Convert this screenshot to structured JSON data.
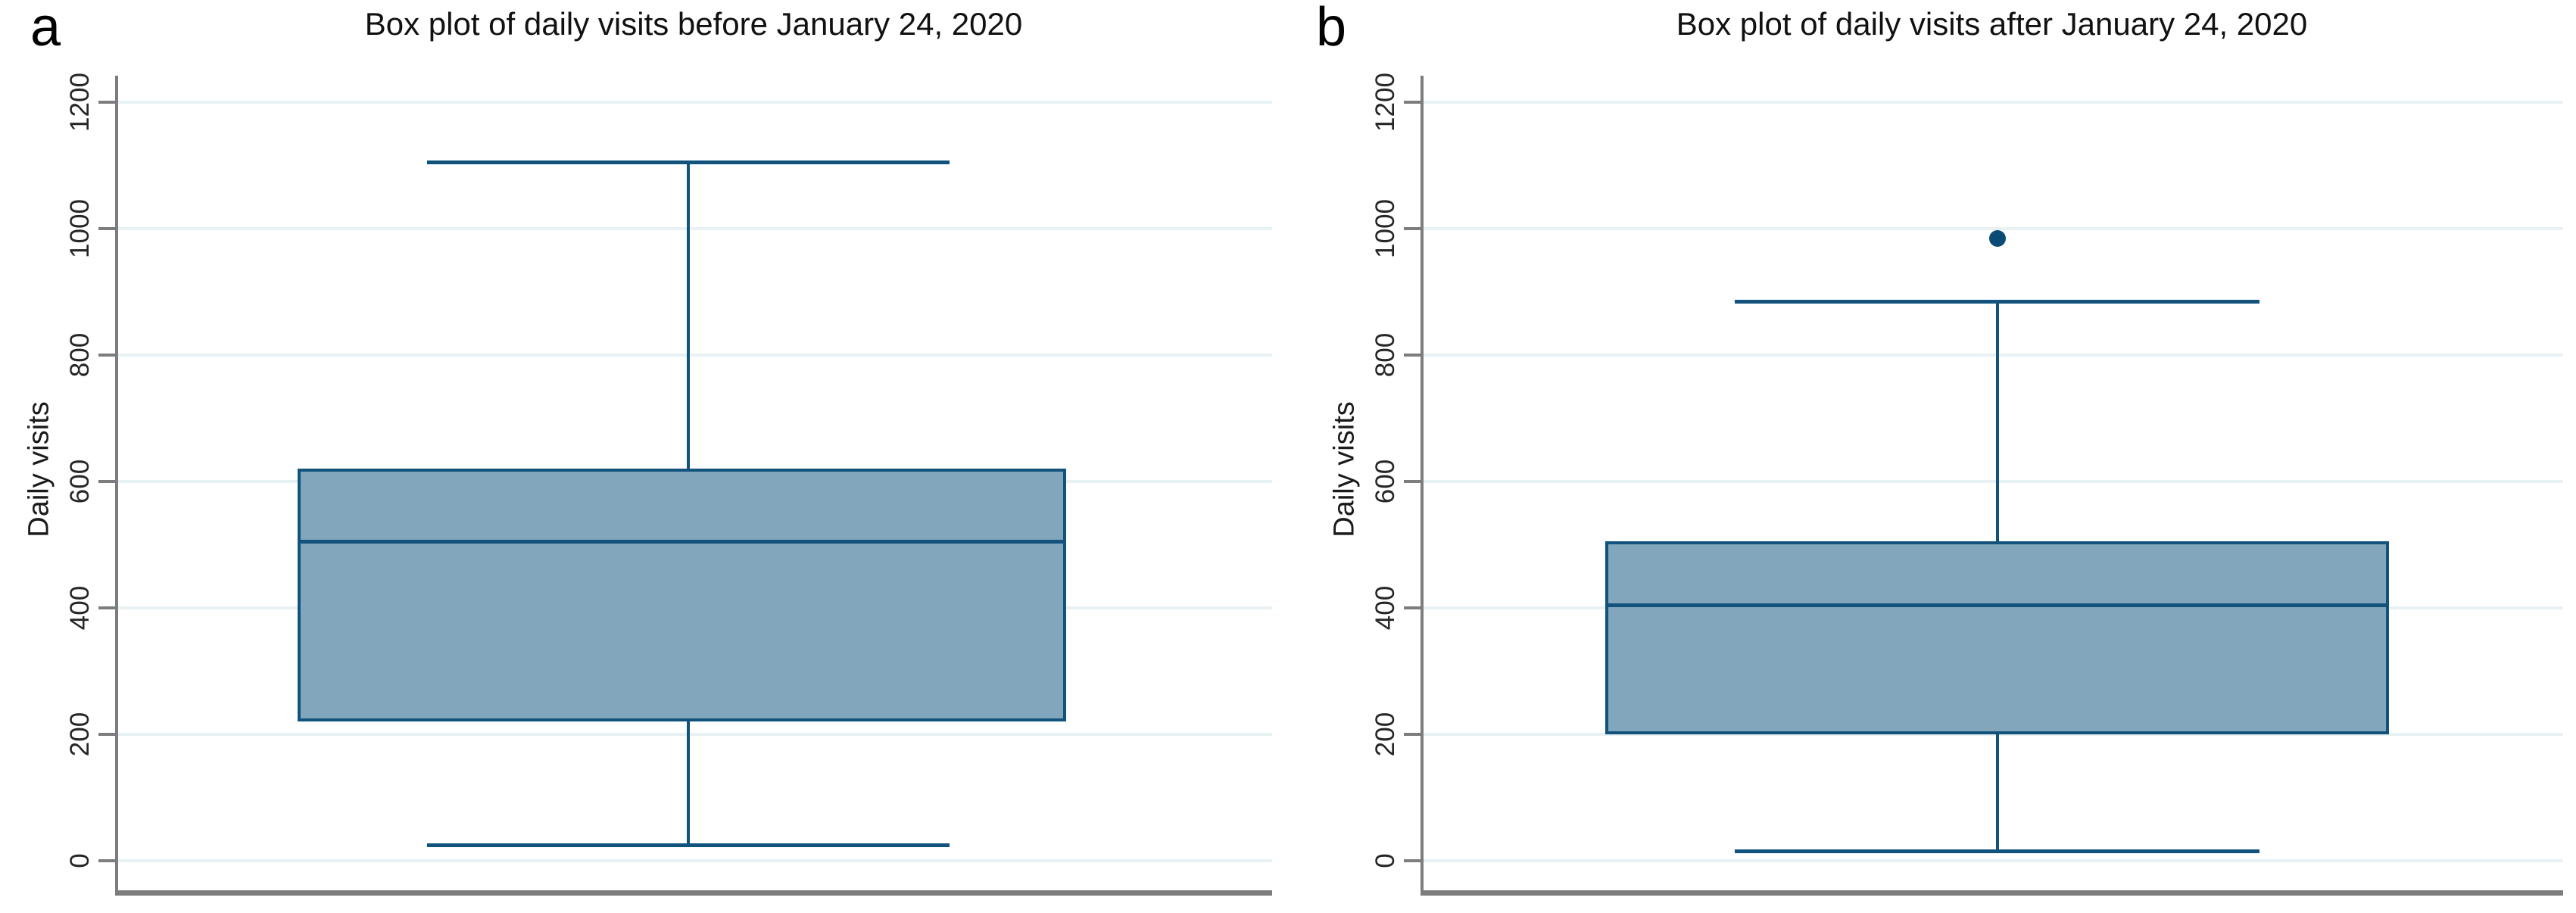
{
  "style": {
    "background": "#ffffff",
    "box_fill": "#82a6bc",
    "box_line": "#11537c",
    "outlier_color": "#0c4b76",
    "gridline_color": "#e8f1f3",
    "axis_color": "#7d7d7d",
    "text_color": "#1a1a1a"
  },
  "chart_data": [
    {
      "type": "box",
      "panel_label": "a",
      "title": "Box plot of daily visits before January 24, 2020",
      "ylabel": "Daily visits",
      "xlabel": "",
      "ylim": [
        0,
        1200
      ],
      "y_ticks": [
        0,
        200,
        400,
        600,
        800,
        1000,
        1200
      ],
      "grid": true,
      "legend": "none",
      "series": [
        {
          "name": "daily-visits-before-jan-24-2020",
          "whisker_low": 25,
          "q1": 220,
          "median": 505,
          "q3": 620,
          "whisker_high": 1105,
          "outliers": []
        }
      ]
    },
    {
      "type": "box",
      "panel_label": "b",
      "title": "Box plot of daily visits after January 24, 2020",
      "ylabel": "Daily visits",
      "xlabel": "",
      "ylim": [
        0,
        1200
      ],
      "y_ticks": [
        0,
        200,
        400,
        600,
        800,
        1000,
        1200
      ],
      "grid": true,
      "legend": "none",
      "series": [
        {
          "name": "daily-visits-after-jan-24-2020",
          "whisker_low": 15,
          "q1": 200,
          "median": 405,
          "q3": 505,
          "whisker_high": 885,
          "outliers": [
            985
          ]
        }
      ]
    }
  ]
}
